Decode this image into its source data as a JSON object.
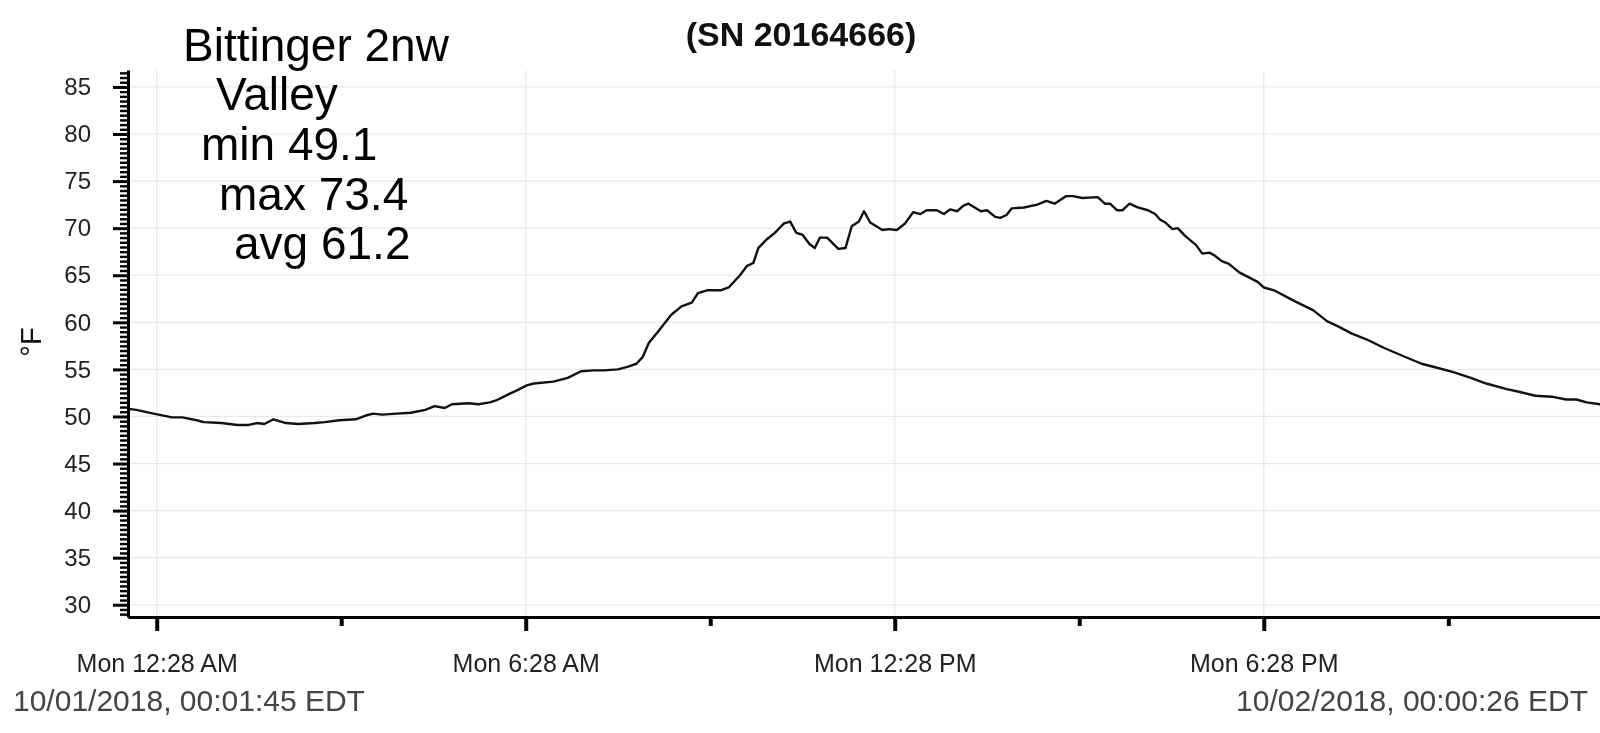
{
  "chart_data": {
    "type": "line",
    "title": "(SN 20164666)",
    "ylabel": "°F",
    "annotations": [
      "Bittinger 2nw",
      "Valley",
      "min 49.1",
      "max 73.4",
      "avg 61.2",
      "10/01/2018, 00:01:45 EDT",
      "10/02/2018, 00:00:26 EDT"
    ],
    "x": [
      "2018-10-01T00:01",
      "2018-10-01T00:08",
      "2018-10-01T00:25",
      "2018-10-01T00:43",
      "2018-10-01T00:53",
      "2018-10-01T01:07",
      "2018-10-01T01:14",
      "2018-10-01T01:31",
      "2018-10-01T01:47",
      "2018-10-01T01:58",
      "2018-10-01T02:06",
      "2018-10-01T02:13",
      "2018-10-01T02:22",
      "2018-10-01T02:34",
      "2018-10-01T02:46",
      "2018-10-01T03:02",
      "2018-10-01T03:12",
      "2018-10-01T03:26",
      "2018-10-01T03:42",
      "2018-10-01T03:52",
      "2018-10-01T03:59",
      "2018-10-01T04:08",
      "2018-10-01T04:22",
      "2018-10-01T04:36",
      "2018-10-01T04:50",
      "2018-10-01T04:59",
      "2018-10-01T05:09",
      "2018-10-01T05:16",
      "2018-10-01T05:32",
      "2018-10-01T05:42",
      "2018-10-01T05:53",
      "2018-10-01T05:59",
      "2018-10-01T06:12",
      "2018-10-01T06:20",
      "2018-10-01T06:29",
      "2018-10-01T06:36",
      "2018-10-01T06:55",
      "2018-10-01T07:09",
      "2018-10-01T07:22",
      "2018-10-01T07:34",
      "2018-10-01T07:44",
      "2018-10-01T07:58",
      "2018-10-01T08:08",
      "2018-10-01T08:16",
      "2018-10-01T08:22",
      "2018-10-01T08:28",
      "2018-10-01T08:37",
      "2018-10-01T08:50",
      "2018-10-01T09:00",
      "2018-10-01T09:10",
      "2018-10-01T09:16",
      "2018-10-01T09:25",
      "2018-10-01T09:38",
      "2018-10-01T09:46",
      "2018-10-01T09:57",
      "2018-10-01T10:04",
      "2018-10-01T10:10",
      "2018-10-01T10:15",
      "2018-10-01T10:23",
      "2018-10-01T10:31",
      "2018-10-01T10:40",
      "2018-10-01T10:46",
      "2018-10-01T10:52",
      "2018-10-01T10:58",
      "2018-10-01T11:05",
      "2018-10-01T11:10",
      "2018-10-01T11:15",
      "2018-10-01T11:22",
      "2018-10-01T11:33",
      "2018-10-01T11:40",
      "2018-10-01T11:46",
      "2018-10-01T11:53",
      "2018-10-01T11:58",
      "2018-10-01T12:04",
      "2018-10-01T12:16",
      "2018-10-01T12:22",
      "2018-10-01T12:30",
      "2018-10-01T12:38",
      "2018-10-01T12:46",
      "2018-10-01T12:53",
      "2018-10-01T12:59",
      "2018-10-01T13:09",
      "2018-10-01T13:16",
      "2018-10-01T13:22",
      "2018-10-01T13:29",
      "2018-10-01T13:35",
      "2018-10-01T13:40",
      "2018-10-01T13:52",
      "2018-10-01T13:58",
      "2018-10-01T14:06",
      "2018-10-01T14:11",
      "2018-10-01T14:17",
      "2018-10-01T14:22",
      "2018-10-01T14:34",
      "2018-10-01T14:47",
      "2018-10-01T14:56",
      "2018-10-01T15:04",
      "2018-10-01T15:15",
      "2018-10-01T15:22",
      "2018-10-01T15:31",
      "2018-10-01T15:46",
      "2018-10-01T15:53",
      "2018-10-01T15:58",
      "2018-10-01T16:05",
      "2018-10-01T16:10",
      "2018-10-01T16:17",
      "2018-10-01T16:25",
      "2018-10-01T16:35",
      "2018-10-01T16:42",
      "2018-10-01T16:47",
      "2018-10-01T16:52",
      "2018-10-01T16:59",
      "2018-10-01T17:04",
      "2018-10-01T17:11",
      "2018-10-01T17:22",
      "2018-10-01T17:28",
      "2018-10-01T17:35",
      "2018-10-01T17:40",
      "2018-10-01T17:47",
      "2018-10-01T17:54",
      "2018-10-01T18:04",
      "2018-10-01T18:15",
      "2018-10-01T18:22",
      "2018-10-01T18:28",
      "2018-10-01T18:38",
      "2018-10-01T18:52",
      "2018-10-01T18:59",
      "2018-10-01T19:16",
      "2018-10-01T19:30",
      "2018-10-01T19:40",
      "2018-10-01T19:54",
      "2018-10-01T20:08",
      "2018-10-01T20:25",
      "2018-10-01T20:42",
      "2018-10-01T21:02",
      "2018-10-01T21:16",
      "2018-10-01T21:33",
      "2018-10-01T21:50",
      "2018-10-01T22:05",
      "2018-10-01T22:25",
      "2018-10-01T22:38",
      "2018-10-01T22:53",
      "2018-10-01T23:09",
      "2018-10-01T23:23",
      "2018-10-01T23:33",
      "2018-10-01T23:43",
      "2018-10-01T23:56"
    ],
    "values": [
      50.8,
      50.7,
      50.3,
      49.9,
      49.9,
      49.6,
      49.4,
      49.3,
      49.1,
      49.1,
      49.3,
      49.2,
      49.7,
      49.3,
      49.2,
      49.3,
      49.4,
      49.6,
      49.7,
      50.1,
      50.3,
      50.2,
      50.3,
      50.4,
      50.7,
      51.1,
      50.9,
      51.3,
      51.4,
      51.3,
      51.5,
      51.7,
      52.4,
      52.8,
      53.3,
      53.5,
      53.7,
      54.1,
      54.8,
      54.9,
      54.9,
      55.0,
      55.3,
      55.6,
      56.3,
      57.8,
      59.0,
      60.8,
      61.7,
      62.1,
      63.1,
      63.4,
      63.4,
      63.7,
      65.0,
      66.0,
      66.3,
      67.9,
      68.8,
      69.5,
      70.5,
      70.7,
      69.5,
      69.3,
      68.3,
      67.9,
      69.0,
      69.0,
      67.8,
      67.9,
      70.2,
      70.7,
      71.8,
      70.6,
      69.8,
      69.9,
      69.8,
      70.5,
      71.7,
      71.5,
      71.9,
      71.9,
      71.5,
      72.0,
      71.8,
      72.4,
      72.6,
      71.8,
      71.9,
      71.2,
      71.1,
      71.4,
      72.1,
      72.2,
      72.5,
      72.9,
      72.6,
      73.4,
      73.4,
      73.2,
      73.3,
      72.6,
      72.6,
      71.9,
      71.9,
      72.6,
      72.2,
      71.9,
      71.5,
      70.9,
      70.6,
      69.9,
      70.0,
      69.2,
      68.2,
      67.3,
      67.4,
      67.1,
      66.5,
      66.2,
      65.3,
      64.7,
      64.3,
      63.7,
      63.4,
      62.6,
      62.2,
      61.3,
      60.1,
      59.6,
      58.8,
      58.2,
      57.3,
      56.5,
      55.6,
      55.2,
      54.7,
      54.1,
      53.5,
      52.9,
      52.6,
      52.2,
      52.1,
      51.8,
      51.8,
      51.5,
      51.3
    ],
    "color": "#111111",
    "line_style": "solid",
    "xlim": [
      "2018-10-01T00:00",
      "2018-10-01T23:56"
    ],
    "ylim": [
      28.7,
      86.8
    ],
    "xticks": [
      {
        "value": "2018-10-01T00:28",
        "label": "Mon 12:28 AM"
      },
      {
        "value": "2018-10-01T03:28",
        "label": null
      },
      {
        "value": "2018-10-01T06:28",
        "label": "Mon 6:28 AM"
      },
      {
        "value": "2018-10-01T09:28",
        "label": null
      },
      {
        "value": "2018-10-01T12:28",
        "label": "Mon 12:28 PM"
      },
      {
        "value": "2018-10-01T15:28",
        "label": null
      },
      {
        "value": "2018-10-01T18:28",
        "label": "Mon 6:28 PM"
      },
      {
        "value": "2018-10-01T21:28",
        "label": null
      }
    ],
    "yticks": [
      {
        "value": 29,
        "label": null
      },
      {
        "value": 29.5,
        "label": null
      },
      30,
      {
        "value": 30.5,
        "label": null
      },
      {
        "value": 31,
        "label": null
      },
      {
        "value": 31.5,
        "label": null
      },
      {
        "value": 32,
        "label": null
      },
      {
        "value": 32.5,
        "label": null
      },
      {
        "value": 33,
        "label": null
      },
      {
        "value": 33.5,
        "label": null
      },
      {
        "value": 34,
        "label": null
      },
      {
        "value": 34.5,
        "label": null
      },
      35,
      {
        "value": 35.5,
        "label": null
      },
      {
        "value": 36,
        "label": null
      },
      {
        "value": 36.5,
        "label": null
      },
      {
        "value": 37,
        "label": null
      },
      {
        "value": 37.5,
        "label": null
      },
      {
        "value": 38,
        "label": null
      },
      {
        "value": 38.5,
        "label": null
      },
      {
        "value": 39,
        "label": null
      },
      {
        "value": 39.5,
        "label": null
      },
      40,
      {
        "value": 40.5,
        "label": null
      },
      {
        "value": 41,
        "label": null
      },
      {
        "value": 41.5,
        "label": null
      },
      {
        "value": 42,
        "label": null
      },
      {
        "value": 42.5,
        "label": null
      },
      {
        "value": 43,
        "label": null
      },
      {
        "value": 43.5,
        "label": null
      },
      {
        "value": 44,
        "label": null
      },
      {
        "value": 44.5,
        "label": null
      },
      45,
      {
        "value": 45.5,
        "label": null
      },
      {
        "value": 46,
        "label": null
      },
      {
        "value": 46.5,
        "label": null
      },
      {
        "value": 47,
        "label": null
      },
      {
        "value": 47.5,
        "label": null
      },
      {
        "value": 48,
        "label": null
      },
      {
        "value": 48.5,
        "label": null
      },
      {
        "value": 49,
        "label": null
      },
      {
        "value": 49.5,
        "label": null
      },
      50,
      {
        "value": 50.5,
        "label": null
      },
      {
        "value": 51,
        "label": null
      },
      {
        "value": 51.5,
        "label": null
      },
      {
        "value": 52,
        "label": null
      },
      {
        "value": 52.5,
        "label": null
      },
      {
        "value": 53,
        "label": null
      },
      {
        "value": 53.5,
        "label": null
      },
      {
        "value": 54,
        "label": null
      },
      {
        "value": 54.5,
        "label": null
      },
      55,
      {
        "value": 55.5,
        "label": null
      },
      {
        "value": 56,
        "label": null
      },
      {
        "value": 56.5,
        "label": null
      },
      {
        "value": 57,
        "label": null
      },
      {
        "value": 57.5,
        "label": null
      },
      {
        "value": 58,
        "label": null
      },
      {
        "value": 58.5,
        "label": null
      },
      {
        "value": 59,
        "label": null
      },
      {
        "value": 59.5,
        "label": null
      },
      60,
      {
        "value": 60.5,
        "label": null
      },
      {
        "value": 61,
        "label": null
      },
      {
        "value": 61.5,
        "label": null
      },
      {
        "value": 62,
        "label": null
      },
      {
        "value": 62.5,
        "label": null
      },
      {
        "value": 63,
        "label": null
      },
      {
        "value": 63.5,
        "label": null
      },
      {
        "value": 64,
        "label": null
      },
      {
        "value": 64.5,
        "label": null
      },
      65,
      {
        "value": 65.5,
        "label": null
      },
      {
        "value": 66,
        "label": null
      },
      {
        "value": 66.5,
        "label": null
      },
      {
        "value": 67,
        "label": null
      },
      {
        "value": 67.5,
        "label": null
      },
      {
        "value": 68,
        "label": null
      },
      {
        "value": 68.5,
        "label": null
      },
      {
        "value": 69,
        "label": null
      },
      {
        "value": 69.5,
        "label": null
      },
      70,
      {
        "value": 70.5,
        "label": null
      },
      {
        "value": 71,
        "label": null
      },
      {
        "value": 71.5,
        "label": null
      },
      {
        "value": 72,
        "label": null
      },
      {
        "value": 72.5,
        "label": null
      },
      {
        "value": 73,
        "label": null
      },
      {
        "value": 73.5,
        "label": null
      },
      {
        "value": 74,
        "label": null
      },
      {
        "value": 74.5,
        "label": null
      },
      75,
      {
        "value": 75.5,
        "label": null
      },
      {
        "value": 76,
        "label": null
      },
      {
        "value": 76.5,
        "label": null
      },
      {
        "value": 77,
        "label": null
      },
      {
        "value": 77.5,
        "label": null
      },
      {
        "value": 78,
        "label": null
      },
      {
        "value": 78.5,
        "label": null
      },
      {
        "value": 79,
        "label": null
      },
      {
        "value": 79.5,
        "label": null
      },
      80,
      {
        "value": 80.5,
        "label": null
      },
      {
        "value": 81,
        "label": null
      },
      {
        "value": 81.5,
        "label": null
      },
      {
        "value": 82,
        "label": null
      },
      {
        "value": 82.5,
        "label": null
      },
      {
        "value": 83,
        "label": null
      },
      {
        "value": 83.5,
        "label": null
      },
      {
        "value": 84,
        "label": null
      },
      {
        "value": 84.5,
        "label": null
      },
      85,
      {
        "value": 85.5,
        "label": null
      },
      {
        "value": 86,
        "label": null
      },
      {
        "value": 86.5,
        "label": null
      }
    ],
    "grid": true
  }
}
